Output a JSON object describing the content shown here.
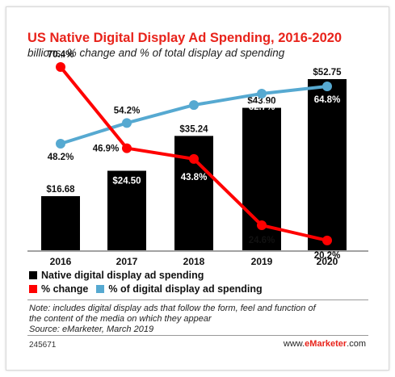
{
  "title": "US Native Digital Display Ad Spending, 2016-2020",
  "subtitle": "billions, % change and % of total display ad spending",
  "colors": {
    "bar": "#000000",
    "change": "#ff0000",
    "share": "#56a9d1",
    "title": "#e8231b"
  },
  "chart_data": {
    "type": "bar",
    "categories": [
      "2016",
      "2017",
      "2018",
      "2019",
      "2020"
    ],
    "series": [
      {
        "name": "Native digital display ad spending",
        "type": "bar",
        "values": [
          16.68,
          24.5,
          35.24,
          43.9,
          52.75
        ],
        "labels": [
          "$16.68",
          "$24.50",
          "$35.24",
          "$43.90",
          "$52.75"
        ]
      },
      {
        "name": "% change",
        "type": "line",
        "values": [
          70.4,
          46.9,
          43.8,
          24.6,
          20.2
        ],
        "labels": [
          "70.4%",
          "46.9%",
          "43.8%",
          "24.6%",
          "20.2%"
        ]
      },
      {
        "name": "% of digital display ad spending",
        "type": "line",
        "values": [
          48.2,
          54.2,
          59.4,
          62.7,
          64.8
        ],
        "labels": [
          "48.2%",
          "54.2%",
          "59.4%",
          "62.7%",
          "64.8%"
        ]
      }
    ]
  },
  "legend": [
    {
      "label": "Native digital display ad spending",
      "color": "#000000"
    },
    {
      "label": "% change",
      "color": "#ff0000"
    },
    {
      "label": "% of digital display ad spending",
      "color": "#56a9d1"
    }
  ],
  "note_line1": "Note: includes digital display ads that follow the form, feel and function of",
  "note_line2": "the content of the media on which they appear",
  "source": "Source: eMarketer, March 2019",
  "footer_id": "245671",
  "footer_brand_prefix": "www.",
  "footer_brand_bold": "eMarketer",
  "footer_brand_suffix": ".com"
}
